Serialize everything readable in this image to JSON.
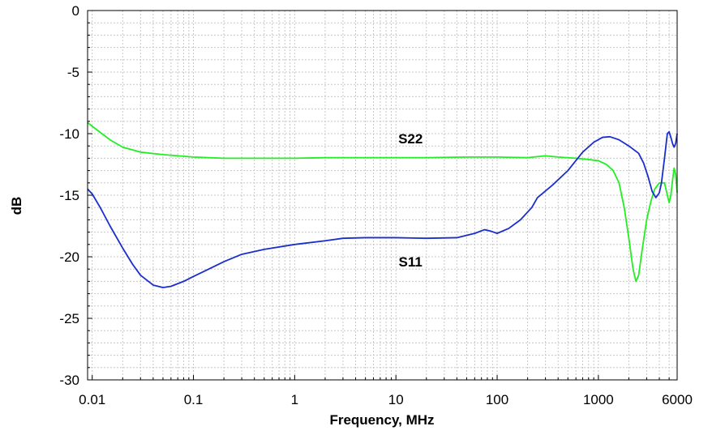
{
  "chart_data": {
    "type": "line",
    "xlabel": "Frequency, MHz",
    "ylabel": "dB",
    "x_scale": "log",
    "xlim": [
      0.009,
      6000
    ],
    "ylim": [
      -30,
      0
    ],
    "x_ticks": [
      {
        "value": 0.01,
        "label": "0.01"
      },
      {
        "value": 0.1,
        "label": "0.1"
      },
      {
        "value": 1,
        "label": "1"
      },
      {
        "value": 10,
        "label": "10"
      },
      {
        "value": 100,
        "label": "100"
      },
      {
        "value": 1000,
        "label": "1000"
      },
      {
        "value": 6000,
        "label": "6000"
      }
    ],
    "y_ticks": [
      {
        "value": 0,
        "label": "0"
      },
      {
        "value": -5,
        "label": "-5"
      },
      {
        "value": -10,
        "label": "-10"
      },
      {
        "value": -15,
        "label": "-15"
      },
      {
        "value": -20,
        "label": "-20"
      },
      {
        "value": -25,
        "label": "-25"
      },
      {
        "value": -30,
        "label": "-30"
      }
    ],
    "grid": true,
    "legend": "none",
    "series": [
      {
        "name": "S22",
        "color": "#22ee22",
        "label_at": [
          10,
          -10
        ],
        "points": [
          [
            0.009,
            -9.1
          ],
          [
            0.01,
            -9.4
          ],
          [
            0.012,
            -9.9
          ],
          [
            0.015,
            -10.5
          ],
          [
            0.02,
            -11.1
          ],
          [
            0.03,
            -11.5
          ],
          [
            0.05,
            -11.7
          ],
          [
            0.1,
            -11.9
          ],
          [
            0.2,
            -12.0
          ],
          [
            0.5,
            -12.0
          ],
          [
            1,
            -12.0
          ],
          [
            2,
            -11.95
          ],
          [
            5,
            -11.95
          ],
          [
            10,
            -11.95
          ],
          [
            20,
            -11.95
          ],
          [
            50,
            -11.9
          ],
          [
            100,
            -11.9
          ],
          [
            200,
            -11.95
          ],
          [
            300,
            -11.8
          ],
          [
            400,
            -11.9
          ],
          [
            600,
            -12.0
          ],
          [
            800,
            -12.1
          ],
          [
            1000,
            -12.2
          ],
          [
            1200,
            -12.5
          ],
          [
            1400,
            -13.0
          ],
          [
            1600,
            -14.0
          ],
          [
            1800,
            -16.0
          ],
          [
            2000,
            -18.5
          ],
          [
            2200,
            -21.0
          ],
          [
            2350,
            -22.0
          ],
          [
            2500,
            -21.5
          ],
          [
            2700,
            -19.5
          ],
          [
            3000,
            -17.0
          ],
          [
            3300,
            -15.5
          ],
          [
            3600,
            -14.5
          ],
          [
            4000,
            -14.0
          ],
          [
            4500,
            -14.0
          ],
          [
            4800,
            -15.0
          ],
          [
            5000,
            -15.6
          ],
          [
            5200,
            -15.0
          ],
          [
            5400,
            -13.8
          ],
          [
            5600,
            -12.8
          ],
          [
            5800,
            -13.3
          ],
          [
            6000,
            -14.8
          ]
        ]
      },
      {
        "name": "S11",
        "color": "#1a2ecc",
        "label_at": [
          10,
          -20
        ],
        "points": [
          [
            0.009,
            -14.5
          ],
          [
            0.01,
            -14.9
          ],
          [
            0.012,
            -16.0
          ],
          [
            0.015,
            -17.5
          ],
          [
            0.02,
            -19.3
          ],
          [
            0.025,
            -20.6
          ],
          [
            0.03,
            -21.5
          ],
          [
            0.04,
            -22.3
          ],
          [
            0.05,
            -22.5
          ],
          [
            0.06,
            -22.4
          ],
          [
            0.08,
            -22.0
          ],
          [
            0.1,
            -21.6
          ],
          [
            0.15,
            -20.9
          ],
          [
            0.2,
            -20.4
          ],
          [
            0.3,
            -19.8
          ],
          [
            0.5,
            -19.4
          ],
          [
            1,
            -19.0
          ],
          [
            2,
            -18.7
          ],
          [
            3,
            -18.5
          ],
          [
            5,
            -18.45
          ],
          [
            10,
            -18.45
          ],
          [
            20,
            -18.5
          ],
          [
            40,
            -18.45
          ],
          [
            60,
            -18.1
          ],
          [
            75,
            -17.8
          ],
          [
            85,
            -17.9
          ],
          [
            100,
            -18.1
          ],
          [
            130,
            -17.7
          ],
          [
            170,
            -17.0
          ],
          [
            220,
            -16.0
          ],
          [
            250,
            -15.2
          ],
          [
            350,
            -14.2
          ],
          [
            500,
            -13.0
          ],
          [
            700,
            -11.5
          ],
          [
            900,
            -10.7
          ],
          [
            1100,
            -10.3
          ],
          [
            1300,
            -10.25
          ],
          [
            1600,
            -10.5
          ],
          [
            2000,
            -11.0
          ],
          [
            2500,
            -11.6
          ],
          [
            2800,
            -12.4
          ],
          [
            3100,
            -13.5
          ],
          [
            3400,
            -14.7
          ],
          [
            3700,
            -15.2
          ],
          [
            4000,
            -14.8
          ],
          [
            4200,
            -14.0
          ],
          [
            4500,
            -12.0
          ],
          [
            4800,
            -10.0
          ],
          [
            5000,
            -9.85
          ],
          [
            5200,
            -10.3
          ],
          [
            5400,
            -10.8
          ],
          [
            5600,
            -11.1
          ],
          [
            5800,
            -10.8
          ],
          [
            6000,
            -10.0
          ]
        ]
      }
    ]
  }
}
